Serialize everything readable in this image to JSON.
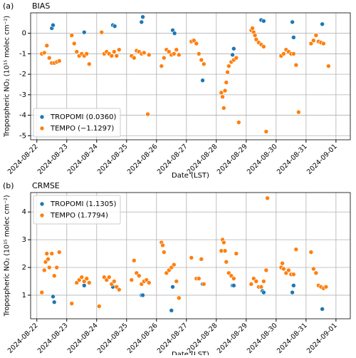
{
  "chart_data": [
    {
      "type": "scatter",
      "panel_label": "(a)",
      "title": "BIAS",
      "x_label": "Date (LST)",
      "y_label": "Tropospheric NO₂ (10¹⁵ molec cm⁻²)",
      "xlim": [
        "2024-08-21T19:00",
        "2024-09-01T11:30"
      ],
      "xticks": [
        "2024-08-22",
        "2024-08-23",
        "2024-08-24",
        "2024-08-25",
        "2024-08-26",
        "2024-08-27",
        "2024-08-28",
        "2024-08-29",
        "2024-08-30",
        "2024-08-31",
        "2024-09-01"
      ],
      "ylim": [
        -5.2,
        1.0
      ],
      "yticks": [
        -5,
        -4,
        -3,
        -2,
        -1,
        0
      ],
      "grid": true,
      "legend": "lower left",
      "series": [
        {
          "name": "TROPOMI (0.0360)",
          "color": "#1f77b4",
          "x": [
            "2024-08-22T12:00",
            "2024-08-22T13:00",
            "2024-08-23T14:00",
            "2024-08-24T13:00",
            "2024-08-24T14:30",
            "2024-08-25T12:00",
            "2024-08-25T13:00",
            "2024-08-26T13:00",
            "2024-08-26T14:30",
            "2024-08-27T13:00",
            "2024-08-28T13:00",
            "2024-08-28T14:00",
            "2024-08-29T12:00",
            "2024-08-29T14:00",
            "2024-08-30T13:00",
            "2024-08-30T14:00",
            "2024-08-31T13:00"
          ],
          "values": [
            0.25,
            0.4,
            0.05,
            0.4,
            0.35,
            0.55,
            0.8,
            0.15,
            0.0,
            -2.3,
            -1.05,
            -0.75,
            0.65,
            0.6,
            0.55,
            -0.2,
            0.45
          ]
        },
        {
          "name": "TEMPO (−1.1297)",
          "color": "#ff7f0e",
          "x": [
            "2024-08-22T04:00",
            "2024-08-22T06:00",
            "2024-08-22T08:00",
            "2024-08-22T10:00",
            "2024-08-22T12:00",
            "2024-08-22T14:00",
            "2024-08-22T16:00",
            "2024-08-22T18:00",
            "2024-08-23T04:00",
            "2024-08-23T06:00",
            "2024-08-23T08:00",
            "2024-08-23T10:00",
            "2024-08-23T12:00",
            "2024-08-23T14:00",
            "2024-08-23T16:00",
            "2024-08-23T18:00",
            "2024-08-24T04:00",
            "2024-08-24T06:00",
            "2024-08-24T08:00",
            "2024-08-24T10:00",
            "2024-08-24T12:00",
            "2024-08-24T14:00",
            "2024-08-24T16:00",
            "2024-08-24T18:00",
            "2024-08-25T04:00",
            "2024-08-25T06:00",
            "2024-08-25T08:00",
            "2024-08-25T10:00",
            "2024-08-25T12:00",
            "2024-08-25T14:00",
            "2024-08-25T17:00",
            "2024-08-25T18:00",
            "2024-08-26T04:00",
            "2024-08-26T06:00",
            "2024-08-26T08:00",
            "2024-08-26T10:00",
            "2024-08-26T12:00",
            "2024-08-26T14:00",
            "2024-08-26T16:00",
            "2024-08-26T18:00",
            "2024-08-27T04:00",
            "2024-08-27T06:00",
            "2024-08-27T08:00",
            "2024-08-27T10:00",
            "2024-08-27T12:00",
            "2024-08-27T14:00",
            "2024-08-28T04:00",
            "2024-08-28T05:00",
            "2024-08-28T06:00",
            "2024-08-28T07:00",
            "2024-08-28T08:00",
            "2024-08-28T09:00",
            "2024-08-28T10:00",
            "2024-08-28T12:00",
            "2024-08-28T14:00",
            "2024-08-28T16:00",
            "2024-08-28T18:00",
            "2024-08-29T04:00",
            "2024-08-29T05:00",
            "2024-08-29T06:00",
            "2024-08-29T07:00",
            "2024-08-29T08:00",
            "2024-08-29T10:00",
            "2024-08-29T12:00",
            "2024-08-29T14:00",
            "2024-08-29T16:00",
            "2024-08-30T04:00",
            "2024-08-30T06:00",
            "2024-08-30T08:00",
            "2024-08-30T10:00",
            "2024-08-30T12:00",
            "2024-08-30T14:00",
            "2024-08-30T16:00",
            "2024-08-30T18:00",
            "2024-08-31T04:00",
            "2024-08-31T06:00",
            "2024-08-31T08:00",
            "2024-08-31T10:00",
            "2024-08-31T12:00",
            "2024-08-31T14:00",
            "2024-08-31T18:00"
          ],
          "values": [
            -1.0,
            -0.95,
            -0.6,
            -1.2,
            -1.45,
            -1.45,
            -1.4,
            -1.35,
            -0.1,
            -0.5,
            -0.9,
            -1.1,
            -1.0,
            -1.1,
            -1.0,
            -1.5,
            0.05,
            -1.0,
            -0.9,
            -1.0,
            -1.1,
            -0.9,
            -1.1,
            -0.8,
            -1.1,
            -1.2,
            -0.85,
            -0.9,
            -1.0,
            -0.95,
            -3.95,
            -1.05,
            -1.6,
            -1.2,
            -0.8,
            -0.9,
            -1.05,
            -1.0,
            -0.8,
            -1.05,
            -0.4,
            -0.35,
            -0.5,
            -1.0,
            -1.3,
            -1.5,
            -2.9,
            -3.1,
            -3.65,
            -2.8,
            -2.4,
            -1.9,
            -1.6,
            -1.4,
            -1.3,
            -1.2,
            -4.35,
            0.15,
            0.25,
            0.05,
            -0.1,
            -0.3,
            -0.45,
            -0.55,
            -0.65,
            -4.8,
            -1.1,
            -1.0,
            -0.8,
            -0.9,
            -1.0,
            -1.0,
            -1.55,
            -3.85,
            -0.5,
            -0.35,
            -0.1,
            -0.4,
            -0.45,
            -0.5,
            -1.6
          ]
        }
      ]
    },
    {
      "type": "scatter",
      "panel_label": "(b)",
      "title": "CRMSE",
      "x_label": "Date (LST)",
      "y_label": "Tropospheric NO₂ (10¹⁵ molec cm⁻²)",
      "xlim": [
        "2024-08-21T19:00",
        "2024-09-01T11:30"
      ],
      "xticks": [
        "2024-08-22",
        "2024-08-23",
        "2024-08-24",
        "2024-08-25",
        "2024-08-26",
        "2024-08-27",
        "2024-08-28",
        "2024-08-29",
        "2024-08-30",
        "2024-08-31",
        "2024-09-01"
      ],
      "ylim": [
        0.15,
        4.7
      ],
      "yticks": [
        1,
        2,
        3,
        4
      ],
      "grid": true,
      "legend": "upper left",
      "series": [
        {
          "name": "TROPOMI (1.1305)",
          "color": "#1f77b4",
          "x": [
            "2024-08-22T13:00",
            "2024-08-22T14:00",
            "2024-08-23T14:00",
            "2024-08-24T13:00",
            "2024-08-25T12:00",
            "2024-08-25T13:00",
            "2024-08-26T12:00",
            "2024-08-26T13:00",
            "2024-08-27T13:00",
            "2024-08-28T13:00",
            "2024-08-28T14:00",
            "2024-08-29T13:00",
            "2024-08-29T14:00",
            "2024-08-30T13:00",
            "2024-08-30T14:00",
            "2024-08-31T13:00"
          ],
          "values": [
            0.95,
            0.75,
            1.35,
            1.3,
            1.0,
            1.0,
            0.45,
            1.3,
            1.4,
            1.35,
            1.35,
            1.15,
            1.1,
            1.1,
            1.35,
            0.5
          ]
        },
        {
          "name": "TEMPO (1.7794)",
          "color": "#ff7f0e",
          "x": [
            "2024-08-22T04:00",
            "2024-08-22T06:00",
            "2024-08-22T07:00",
            "2024-08-22T08:00",
            "2024-08-22T09:00",
            "2024-08-22T10:00",
            "2024-08-22T12:00",
            "2024-08-22T14:00",
            "2024-08-22T16:00",
            "2024-08-22T18:00",
            "2024-08-23T04:00",
            "2024-08-23T08:00",
            "2024-08-23T10:00",
            "2024-08-23T12:00",
            "2024-08-23T14:00",
            "2024-08-23T16:00",
            "2024-08-23T18:00",
            "2024-08-24T02:00",
            "2024-08-24T06:00",
            "2024-08-24T08:00",
            "2024-08-24T10:00",
            "2024-08-24T12:00",
            "2024-08-24T14:00",
            "2024-08-24T16:00",
            "2024-08-24T18:00",
            "2024-08-25T04:00",
            "2024-08-25T06:00",
            "2024-08-25T08:00",
            "2024-08-25T10:00",
            "2024-08-25T12:00",
            "2024-08-25T14:00",
            "2024-08-25T16:00",
            "2024-08-25T18:00",
            "2024-08-26T04:00",
            "2024-08-26T05:00",
            "2024-08-26T06:00",
            "2024-08-26T08:00",
            "2024-08-26T10:00",
            "2024-08-26T12:00",
            "2024-08-26T14:00",
            "2024-08-26T16:00",
            "2024-08-26T18:00",
            "2024-08-27T04:00",
            "2024-08-27T08:00",
            "2024-08-27T10:00",
            "2024-08-27T12:00",
            "2024-08-27T14:00",
            "2024-08-28T04:00",
            "2024-08-28T05:00",
            "2024-08-28T06:00",
            "2024-08-28T07:00",
            "2024-08-28T08:00",
            "2024-08-28T10:00",
            "2024-08-28T12:00",
            "2024-08-28T14:00",
            "2024-08-28T16:00",
            "2024-08-29T04:00",
            "2024-08-29T06:00",
            "2024-08-29T08:00",
            "2024-08-29T10:00",
            "2024-08-29T12:00",
            "2024-08-29T14:00",
            "2024-08-29T16:00",
            "2024-08-29T17:00",
            "2024-08-30T04:00",
            "2024-08-30T05:00",
            "2024-08-30T06:00",
            "2024-08-30T08:00",
            "2024-08-30T10:00",
            "2024-08-30T12:00",
            "2024-08-30T14:00",
            "2024-08-30T16:00",
            "2024-08-31T04:00",
            "2024-08-31T06:00",
            "2024-08-31T08:00",
            "2024-08-31T10:00",
            "2024-08-31T12:00",
            "2024-08-31T14:00",
            "2024-08-31T16:00"
          ],
          "values": [
            1.1,
            1.9,
            2.2,
            2.5,
            2.3,
            2.0,
            2.5,
            1.7,
            2.0,
            2.55,
            0.7,
            1.45,
            1.55,
            1.65,
            1.5,
            1.6,
            1.45,
            0.6,
            1.65,
            1.55,
            1.65,
            1.4,
            1.5,
            1.3,
            1.2,
            1.55,
            2.25,
            1.8,
            1.7,
            1.4,
            1.5,
            1.55,
            1.45,
            2.9,
            2.8,
            2.55,
            1.8,
            1.9,
            2.0,
            2.1,
            1.5,
            0.9,
            2.35,
            1.6,
            1.6,
            2.3,
            1.4,
            2.6,
            3.0,
            2.9,
            2.6,
            2.2,
            1.8,
            1.7,
            1.6,
            2.5,
            1.4,
            1.6,
            1.5,
            1.3,
            1.3,
            1.5,
            1.9,
            4.5,
            2.0,
            2.15,
            1.95,
            1.8,
            1.9,
            1.75,
            1.75,
            2.65,
            2.55,
            1.95,
            1.8,
            1.35,
            1.3,
            1.25,
            1.3
          ]
        }
      ]
    }
  ]
}
